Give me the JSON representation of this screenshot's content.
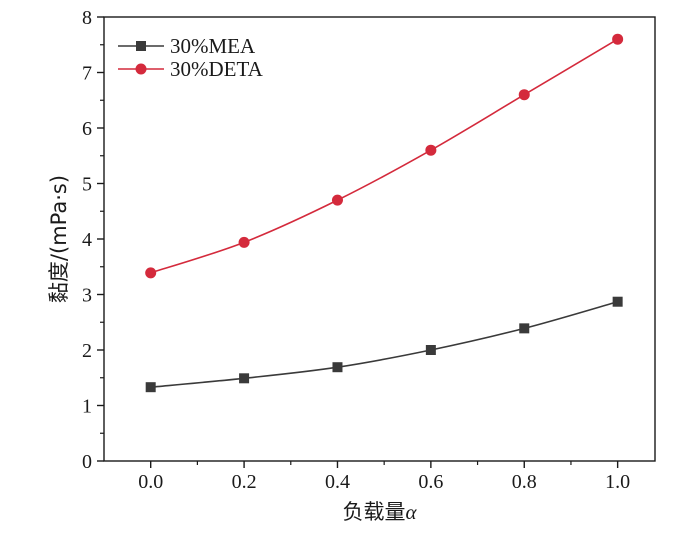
{
  "chart_data": {
    "type": "line",
    "xlabel_text": "负载量",
    "xlabel_symbol": "α",
    "ylabel": "黏度/(mPa·s)",
    "xlim": [
      -0.1,
      1.08
    ],
    "ylim": [
      0,
      8
    ],
    "x_ticks": [
      "0.0",
      "0.2",
      "0.4",
      "0.6",
      "0.8",
      "1.0"
    ],
    "y_ticks": [
      "0",
      "1",
      "2",
      "3",
      "4",
      "5",
      "6",
      "7",
      "8"
    ],
    "grid": false,
    "legend_position": "top-left",
    "x": [
      0.0,
      0.2,
      0.4,
      0.6,
      0.8,
      1.0
    ],
    "series": [
      {
        "name": "30%MEA",
        "values": [
          1.33,
          1.49,
          1.69,
          2.0,
          2.39,
          2.87
        ],
        "color": "#3a3a3a",
        "marker": "square"
      },
      {
        "name": "30%DETA",
        "values": [
          3.39,
          3.94,
          4.7,
          5.6,
          6.6,
          7.6
        ],
        "color": "#d42a3c",
        "marker": "circle"
      }
    ]
  }
}
